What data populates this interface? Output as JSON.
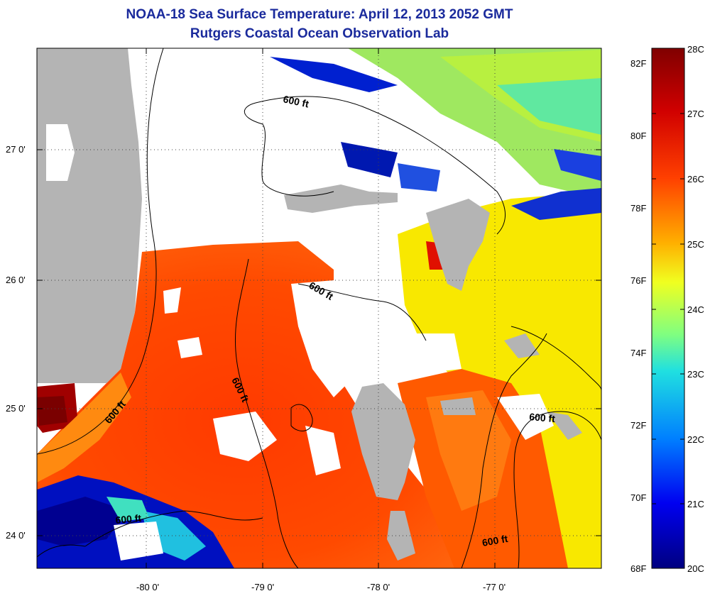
{
  "title": {
    "line1": "NOAA-18 Sea Surface Temperature:  April 12, 2013 2052 GMT",
    "line2": "Rutgers Coastal Ocean Observation Lab"
  },
  "map": {
    "lon_ticks": [
      "-80 0'",
      "-79 0'",
      "-78 0'",
      "-77 0'"
    ],
    "lat_ticks": [
      "27 0'",
      "26 0'",
      "25 0'",
      "24 0'"
    ],
    "contour_label": "600 ft",
    "colors": {
      "land": "#b4b4b4",
      "cloud": "#ffffff",
      "frame": "#000000"
    }
  },
  "colorbar": {
    "celsius_labels": [
      "28C",
      "27C",
      "26C",
      "25C",
      "24C",
      "23C",
      "22C",
      "21C",
      "20C"
    ],
    "fahrenheit_labels": [
      "82F",
      "80F",
      "78F",
      "76F",
      "74F",
      "72F",
      "70F",
      "68F"
    ],
    "colormap": [
      "#800000",
      "#ff0000",
      "#ff8000",
      "#ffff00",
      "#80ff80",
      "#00ffff",
      "#0080ff",
      "#0000ff",
      "#000080"
    ]
  }
}
